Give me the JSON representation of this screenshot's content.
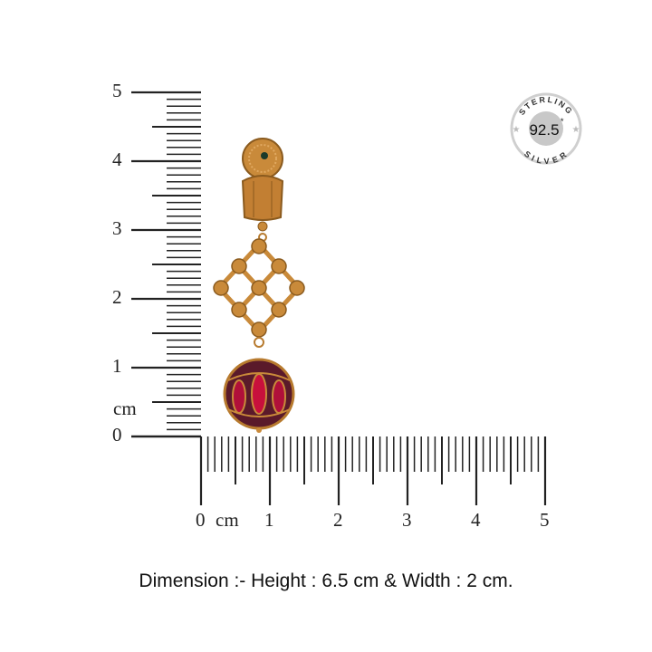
{
  "vertical_ruler": {
    "labels": [
      "5",
      "4",
      "3",
      "2",
      "1",
      "0"
    ],
    "unit": "cm",
    "max_cm": 5,
    "subdivisions": 10
  },
  "horizontal_ruler": {
    "labels": [
      "0",
      "1",
      "2",
      "3",
      "4",
      "5"
    ],
    "unit": "cm",
    "max_cm": 5,
    "subdivisions": 10
  },
  "badge": {
    "top_text": "STERLING",
    "center_text": "92.5",
    "bottom_text": "SILVER",
    "star": "*"
  },
  "caption": "Dimension :-  Height : 6.5 cm & Width : 2 cm.",
  "colors": {
    "gold": "#c98a3a",
    "gold_dark": "#8a5a1e",
    "ruby": "#b0103a",
    "ruler": "#222222",
    "badge_grey": "#c8c8c8"
  }
}
